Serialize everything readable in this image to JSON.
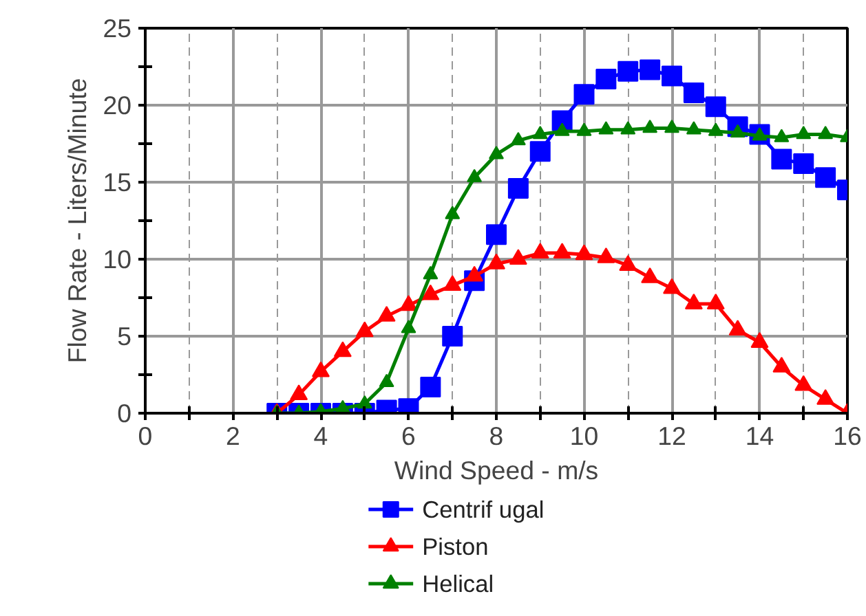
{
  "chart_data": {
    "type": "line",
    "xlabel": "Wind Speed - m/s",
    "ylabel": "Flow Rate - Liters/Minute",
    "x": [
      3,
      3.5,
      4,
      4.5,
      5,
      5.5,
      6,
      6.5,
      7,
      7.5,
      8,
      8.5,
      9,
      9.5,
      10,
      10.5,
      11,
      11.5,
      12,
      12.5,
      13,
      13.5,
      14,
      14.5,
      15,
      15.5,
      16
    ],
    "series": [
      {
        "name": "Centrif ugal",
        "color": "#0000ff",
        "marker": "square",
        "values": [
          0,
          0,
          0,
          0,
          0,
          0.2,
          0.3,
          1.7,
          5,
          8.6,
          11.6,
          14.6,
          17,
          19,
          20.7,
          21.7,
          22.2,
          22.3,
          21.9,
          20.8,
          19.9,
          18.6,
          18.1,
          16.5,
          16.2,
          15.3,
          14.5
        ]
      },
      {
        "name": "Piston",
        "color": "#ff0000",
        "marker": "triangle",
        "values": [
          0,
          1.2,
          2.7,
          4,
          5.3,
          6.3,
          7,
          7.7,
          8.3,
          8.9,
          9.7,
          10,
          10.4,
          10.4,
          10.3,
          10.1,
          9.6,
          8.8,
          8.1,
          7.1,
          7.1,
          5.4,
          4.6,
          3,
          1.8,
          0.9,
          0
        ]
      },
      {
        "name": "Helical",
        "color": "#008000",
        "marker": "triangle",
        "values": [
          0,
          0,
          0.1,
          0.3,
          0.6,
          2,
          5.5,
          9,
          12.9,
          15.3,
          16.8,
          17.7,
          18.1,
          18.3,
          18.3,
          18.4,
          18.4,
          18.5,
          18.5,
          18.4,
          18.3,
          18.2,
          18,
          17.9,
          18.1,
          18.1,
          17.9
        ]
      }
    ],
    "xlim": [
      0,
      16
    ],
    "ylim": [
      0,
      25
    ],
    "xticks": [
      0,
      {
        "value": 1,
        "label": null
      },
      2,
      {
        "value": 3,
        "label": null
      },
      4,
      {
        "value": 5,
        "label": null
      },
      6,
      {
        "value": 7,
        "label": null
      },
      8,
      {
        "value": 9,
        "label": null
      },
      10,
      {
        "value": 11,
        "label": null
      },
      12,
      {
        "value": 13,
        "label": null
      },
      14,
      {
        "value": 15,
        "label": null
      },
      16
    ],
    "yticks": [
      0,
      {
        "value": 2.5,
        "label": null
      },
      5,
      {
        "value": 7.5,
        "label": null
      },
      10,
      {
        "value": 12.5,
        "label": null
      },
      15,
      {
        "value": 17.5,
        "label": null
      },
      20,
      {
        "value": 22.5,
        "label": null
      },
      25
    ],
    "grid": true,
    "legend": "bottom",
    "line_style": "solid"
  }
}
